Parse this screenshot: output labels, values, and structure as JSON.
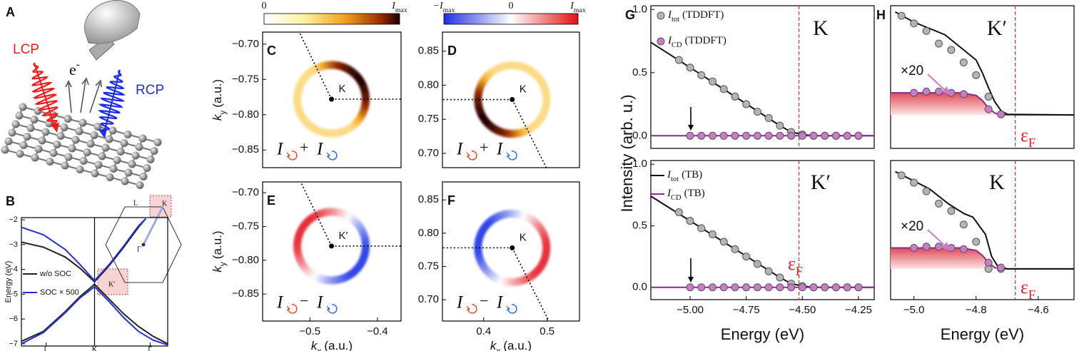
{
  "figure": {
    "panels": [
      "A",
      "B",
      "C",
      "D",
      "E",
      "F",
      "G",
      "H"
    ],
    "illustration": {
      "lcp": "LCP",
      "rcp": "RCP",
      "electron": {
        "main": "e",
        "sup": "-"
      }
    },
    "inset": {
      "l": "L",
      "k": "K",
      "gamma": "Γ",
      "k_prime": "K′"
    }
  },
  "chart_data": [
    {
      "type": "line",
      "ylabel": "Energy (eV)",
      "xlim": [
        0,
        1
      ],
      "ylim": [
        -7.09,
        -1.91
      ],
      "yticks": [
        {
          "value": -2,
          "label": "−2"
        },
        {
          "value": -3,
          "label": "−3"
        },
        {
          "value": -4,
          "label": "−4"
        },
        {
          "value": -5,
          "label": "−5"
        },
        {
          "value": -6,
          "label": "−6"
        },
        {
          "value": -7,
          "label": "−7"
        }
      ],
      "xticks": [
        {
          "value": 0.17,
          "label": "L"
        },
        {
          "value": 0.5,
          "label": "K"
        },
        {
          "value": 0.88,
          "label": "Γ"
        }
      ],
      "vline": 0.5,
      "vline_color": "#000000",
      "vline_style": "solid",
      "series": [
        {
          "name": "w/o SOC",
          "color": "#222222",
          "x": [
            0,
            0.15,
            0.3,
            0.4,
            0.5,
            0.6,
            0.7,
            0.8,
            0.85,
            null,
            0,
            0.15,
            0.3,
            0.4,
            0.5,
            0.6,
            0.7,
            0.8,
            0.9,
            1.0
          ],
          "values": [
            -2.9,
            -3.1,
            -3.5,
            -3.95,
            -4.5,
            -3.85,
            -3.1,
            -2.3,
            -1.95,
            null,
            -6.9,
            -6.5,
            -5.7,
            -5.1,
            -4.6,
            -5.2,
            -5.8,
            -6.3,
            -6.7,
            -7.0
          ]
        },
        {
          "name": "SOC × 500",
          "color": "#2233cc",
          "x": [
            0,
            0.15,
            0.3,
            0.4,
            0.5,
            0.6,
            0.7,
            0.8,
            0.85,
            null,
            0,
            0.15,
            0.3,
            0.4,
            0.5,
            0.6,
            0.7,
            0.8,
            0.9,
            1.0
          ],
          "values": [
            -2.3,
            -2.6,
            -3.2,
            -3.8,
            -4.45,
            -3.8,
            -3.05,
            -2.25,
            -1.95,
            null,
            -7.0,
            -6.55,
            -5.75,
            -5.15,
            -4.7,
            -5.3,
            -5.95,
            -6.5,
            -6.85,
            -7.05
          ]
        }
      ]
    },
    {
      "type": "map",
      "ylabel": {
        "main": "k",
        "sub": "y",
        "tail": "(a.u.)"
      },
      "xlim": [
        -0.57,
        -0.365
      ],
      "ylim": [
        -0.875,
        -0.683
      ],
      "yticks": [
        {
          "value": -0.7,
          "label": "−0.70"
        },
        {
          "value": -0.75,
          "label": "−0.75"
        },
        {
          "value": -0.8,
          "label": "−0.80"
        },
        {
          "value": -0.85,
          "label": "−0.85"
        }
      ],
      "point": {
        "x": -0.468,
        "y": -0.778
      },
      "point_label": "K",
      "formula": {
        "a": "I",
        "op": "+",
        "b": "I"
      },
      "colorbar": [
        "0",
        {
          "main": "I",
          "sub": "max"
        }
      ]
    },
    {
      "type": "map",
      "xlim": [
        0.335,
        0.551
      ],
      "ylim": [
        0.679,
        0.878
      ],
      "yticks": [
        {
          "value": 0.7,
          "label": "0.70"
        },
        {
          "value": 0.75,
          "label": "0.75"
        },
        {
          "value": 0.8,
          "label": "0.80"
        },
        {
          "value": 0.85,
          "label": "0.85"
        }
      ],
      "point": {
        "x": 0.445,
        "y": 0.779
      },
      "point_label": "K",
      "formula": {
        "a": "I",
        "op": "+",
        "b": "I"
      },
      "colorbar": [
        {
          "main": "−I",
          "sub": "max"
        },
        "0",
        {
          "main": "I",
          "sub": "max"
        }
      ]
    },
    {
      "type": "map",
      "xlabel": {
        "main": "k",
        "sub": "x",
        "tail": "(a.u.)"
      },
      "ylabel": {
        "main": "k",
        "sub": "y",
        "tail": "(a.u.)"
      },
      "xlim": [
        -0.57,
        -0.365
      ],
      "ylim": [
        -0.89,
        -0.684
      ],
      "xticks": [
        {
          "value": -0.5,
          "label": "−0.5"
        },
        {
          "value": -0.4,
          "label": "−0.4"
        }
      ],
      "yticks": [
        {
          "value": -0.7,
          "label": "−0.70"
        },
        {
          "value": -0.75,
          "label": "−0.75"
        },
        {
          "value": -0.8,
          "label": "−0.80"
        },
        {
          "value": -0.85,
          "label": "−0.85"
        }
      ],
      "point": {
        "x": -0.468,
        "y": -0.779
      },
      "point_label": "K′",
      "formula": {
        "a": "I",
        "op": "−",
        "b": "I"
      }
    },
    {
      "type": "map",
      "xlabel": {
        "main": "k",
        "sub": "x",
        "tail": "(a.u.)"
      },
      "xlim": [
        0.335,
        0.551
      ],
      "ylim": [
        0.668,
        0.877
      ],
      "xticks": [
        0.4,
        0.5
      ],
      "yticks": [
        {
          "value": 0.7,
          "label": "0.70"
        },
        {
          "value": 0.75,
          "label": "0.75"
        },
        {
          "value": 0.8,
          "label": "0.80"
        },
        {
          "value": 0.85,
          "label": "0.85"
        }
      ],
      "point": {
        "x": 0.445,
        "y": 0.778
      },
      "point_label": "K",
      "formula": {
        "a": "I",
        "op": "−",
        "b": "I"
      }
    },
    {
      "type": "line",
      "ylabel": "Intensity (arb. u.)",
      "xlim": [
        -5.175,
        -4.18
      ],
      "ylim": [
        -0.1,
        1.03
      ],
      "yticks": [
        {
          "value": 0,
          "label": "0.0"
        },
        {
          "value": 0.5,
          "label": "0.5"
        },
        {
          "value": 1,
          "label": "1.0"
        }
      ],
      "vline": -4.515,
      "vline_color": "#e03030",
      "vline_style": "dashed",
      "label": "K",
      "series": [
        {
          "name": {
            "main": "I",
            "sub": "tot",
            "tail": "(TDDFT)"
          },
          "style": "markers",
          "color": "#b4b4b4",
          "x": [
            -5.05,
            -5.0,
            -4.95,
            -4.9,
            -4.85,
            -4.8,
            -4.75,
            -4.7,
            -4.65,
            -4.6,
            -4.55,
            -4.5,
            -4.45,
            -4.4,
            -4.35,
            -4.3,
            -4.25
          ],
          "values": [
            0.6,
            0.54,
            0.48,
            0.43,
            0.37,
            0.31,
            0.25,
            0.19,
            0.14,
            0.08,
            0.03,
            0.01,
            0,
            0,
            0,
            0,
            0
          ]
        },
        {
          "name": {
            "main": "I",
            "sub": "CD",
            "tail": "(TDDFT)"
          },
          "style": "markers",
          "color": "#c77dc7",
          "x": [
            -5.0,
            -4.95,
            -4.9,
            -4.85,
            -4.8,
            -4.75,
            -4.7,
            -4.65,
            -4.6,
            -4.55,
            -4.5,
            -4.45,
            -4.4,
            -4.35,
            -4.3,
            -4.25
          ],
          "values": [
            0,
            0,
            0,
            0,
            0,
            0,
            0,
            0,
            0,
            0,
            0,
            0,
            0,
            0,
            0,
            0
          ]
        },
        {
          "color": "#111111",
          "x": [
            -5.175,
            -5.0,
            -4.8,
            -4.6,
            -4.55,
            -4.5,
            -4.45,
            -4.18
          ],
          "values": [
            0.74,
            0.54,
            0.31,
            0.08,
            0.03,
            0.01,
            0,
            0
          ]
        },
        {
          "color": "#8b2a8b",
          "x": [
            -5.175,
            -4.18
          ],
          "values": [
            0,
            0
          ]
        }
      ]
    },
    {
      "type": "line",
      "xlabel": "Energy (eV)",
      "xlim": [
        -5.175,
        -4.18
      ],
      "ylim": [
        -0.1,
        1.03
      ],
      "xticks": [
        {
          "value": -5,
          "label": "−5.00"
        },
        {
          "value": -4.75,
          "label": "−4.75"
        },
        {
          "value": -4.5,
          "label": "−4.50"
        },
        {
          "value": -4.25,
          "label": "−4.25"
        }
      ],
      "yticks": [
        {
          "value": 0,
          "label": "0.0"
        },
        {
          "value": 0.5,
          "label": "0.5"
        },
        {
          "value": 1,
          "label": "1.0"
        }
      ],
      "vline": -4.515,
      "vline_color": "#e03030",
      "vline_style": "dashed",
      "label": "K′",
      "fermi": {
        "main": "ε",
        "sub": "F"
      },
      "series": [
        {
          "style": "markers",
          "color": "#b4b4b4",
          "x": [
            -5.05,
            -5.0,
            -4.95,
            -4.9,
            -4.85,
            -4.8,
            -4.75,
            -4.7,
            -4.65,
            -4.6,
            -4.55,
            -4.5,
            -4.45,
            -4.4,
            -4.35,
            -4.3,
            -4.25
          ],
          "values": [
            0.61,
            0.54,
            0.48,
            0.43,
            0.37,
            0.31,
            0.25,
            0.19,
            0.13,
            0.08,
            0.03,
            0.01,
            0,
            0,
            0,
            0,
            0
          ]
        },
        {
          "style": "markers",
          "color": "#c77dc7",
          "x": [
            -5.0,
            -4.95,
            -4.9,
            -4.85,
            -4.8,
            -4.75,
            -4.7,
            -4.65,
            -4.6,
            -4.55,
            -4.5,
            -4.45,
            -4.4,
            -4.35,
            -4.3,
            -4.25
          ],
          "values": [
            0,
            0,
            0,
            0,
            0,
            0,
            0,
            0,
            0,
            0,
            0,
            0,
            0,
            0,
            0,
            0
          ]
        },
        {
          "name": {
            "main": "I",
            "sub": "tot",
            "tail": "(TB)"
          },
          "color": "#111111",
          "x": [
            -5.175,
            -5.0,
            -4.8,
            -4.6,
            -4.55,
            -4.5,
            -4.45,
            -4.18
          ],
          "values": [
            0.74,
            0.54,
            0.31,
            0.08,
            0.03,
            0.01,
            0,
            0
          ]
        },
        {
          "name": {
            "main": "I",
            "sub": "CD",
            "tail": "(TB)"
          },
          "color": "#8b2a8b",
          "x": [
            -5.175,
            -4.18
          ],
          "values": [
            0,
            0
          ]
        }
      ]
    },
    {
      "type": "line",
      "xlim": [
        -5.075,
        -4.485
      ],
      "ylim": [
        -0.1,
        1.03
      ],
      "vline": -4.674,
      "vline_color": "#e03030",
      "vline_style": "dashed",
      "label": "K′",
      "fermi": {
        "main": "ε",
        "sub": "F"
      },
      "factor": "×20",
      "series": [
        {
          "color": "#8b2a8b",
          "area": true,
          "x": [
            -5.075,
            -4.85,
            -4.8,
            -4.78,
            -4.76,
            -4.74,
            -4.72,
            -4.485
          ],
          "values": [
            0.34,
            0.34,
            0.32,
            0.28,
            0.22,
            0.18,
            0.166,
            0.165
          ]
        },
        {
          "color": "#111111",
          "x": [
            -5.06,
            -5.0,
            -4.9,
            -4.85,
            -4.8,
            -4.78,
            -4.76,
            -4.74,
            -4.72,
            -4.7,
            -4.485
          ],
          "values": [
            0.98,
            0.9,
            0.8,
            0.7,
            0.6,
            0.5,
            0.38,
            0.27,
            0.2,
            0.17,
            0.165
          ]
        },
        {
          "style": "markers",
          "color": "#b4b4b4",
          "x": [
            -5.04,
            -5.0,
            -4.96,
            -4.92,
            -4.88,
            -4.84,
            -4.8,
            -4.76,
            -4.72
          ],
          "values": [
            0.95,
            0.89,
            0.83,
            0.73,
            0.68,
            0.58,
            0.48,
            0.31,
            0.17
          ]
        },
        {
          "style": "markers",
          "color": "#c77dc7",
          "x": [
            -5.0,
            -4.96,
            -4.92,
            -4.88,
            -4.84,
            -4.76,
            -4.72
          ],
          "values": [
            0.34,
            0.35,
            0.35,
            0.34,
            0.33,
            0.21,
            0.17
          ]
        }
      ]
    },
    {
      "type": "line",
      "xlabel": "Energy (eV)",
      "xlim": [
        -5.075,
        -4.485
      ],
      "ylim": [
        -0.1,
        1.03
      ],
      "xticks": [
        {
          "value": -5,
          "label": "−5.0"
        },
        {
          "value": -4.8,
          "label": "−4.8"
        },
        {
          "value": -4.6,
          "label": "−4.6"
        }
      ],
      "vline": -4.674,
      "vline_color": "#e03030",
      "vline_style": "dashed",
      "label": "K",
      "fermi": {
        "main": "ε",
        "sub": "F"
      },
      "factor": "×20",
      "series": [
        {
          "color": "#8b2a8b",
          "area": true,
          "x": [
            -5.075,
            -4.85,
            -4.8,
            -4.78,
            -4.76,
            -4.74,
            -4.72,
            -4.485
          ],
          "values": [
            0.32,
            0.32,
            0.3,
            0.26,
            0.2,
            0.16,
            0.151,
            0.15
          ]
        },
        {
          "color": "#111111",
          "x": [
            -5.06,
            -4.95,
            -4.89,
            -4.84,
            -4.81,
            -4.77,
            -4.75,
            -4.73,
            -4.7,
            -4.485
          ],
          "values": [
            0.94,
            0.8,
            0.68,
            0.6,
            0.57,
            0.43,
            0.25,
            0.17,
            0.15,
            0.15
          ]
        },
        {
          "style": "markers",
          "color": "#b4b4b4",
          "x": [
            -5.04,
            -5.0,
            -4.96,
            -4.92,
            -4.88,
            -4.84,
            -4.8,
            -4.76,
            -4.72
          ],
          "values": [
            0.91,
            0.85,
            0.78,
            0.68,
            0.62,
            0.51,
            0.37,
            0.15,
            0.15
          ]
        },
        {
          "style": "markers",
          "color": "#c77dc7",
          "x": [
            -5.0,
            -4.96,
            -4.92,
            -4.88,
            -4.84,
            -4.76,
            -4.72
          ],
          "values": [
            0.32,
            0.33,
            0.33,
            0.32,
            0.31,
            0.2,
            0.16
          ]
        }
      ]
    }
  ]
}
